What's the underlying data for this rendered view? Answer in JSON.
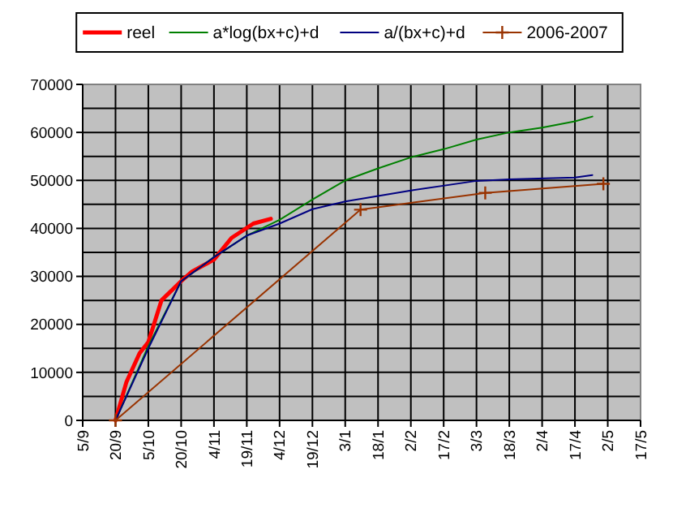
{
  "chart_data": {
    "type": "line",
    "legend": "top",
    "grid": true,
    "xlim": [
      "2007-09-05",
      "2008-05-17"
    ],
    "xticks": [
      {
        "value": "2007-09-05",
        "label": "5/9"
      },
      {
        "value": "2007-09-20",
        "label": "20/9"
      },
      {
        "value": "2007-10-05",
        "label": "5/10"
      },
      {
        "value": "2007-10-20",
        "label": "20/10"
      },
      {
        "value": "2007-11-04",
        "label": "4/11"
      },
      {
        "value": "2007-11-19",
        "label": "19/11"
      },
      {
        "value": "2007-12-04",
        "label": "4/12"
      },
      {
        "value": "2007-12-19",
        "label": "19/12"
      },
      {
        "value": "2008-01-03",
        "label": "3/1"
      },
      {
        "value": "2008-01-18",
        "label": "18/1"
      },
      {
        "value": "2008-02-02",
        "label": "2/2"
      },
      {
        "value": "2008-02-17",
        "label": "17/2"
      },
      {
        "value": "2008-03-03",
        "label": "3/3"
      },
      {
        "value": "2008-03-18",
        "label": "18/3"
      },
      {
        "value": "2008-04-02",
        "label": "2/4"
      },
      {
        "value": "2008-04-17",
        "label": "17/4"
      },
      {
        "value": "2008-05-02",
        "label": "2/5"
      },
      {
        "value": "2008-05-17",
        "label": "17/5"
      }
    ],
    "ylim": [
      0,
      70000
    ],
    "yticks": [
      0,
      {
        "value": 5000,
        "label": null
      },
      10000,
      {
        "value": 15000,
        "label": null
      },
      20000,
      {
        "value": 25000,
        "label": null
      },
      30000,
      {
        "value": 35000,
        "label": null
      },
      40000,
      {
        "value": 45000,
        "label": null
      },
      50000,
      {
        "value": 55000,
        "label": null
      },
      60000,
      {
        "value": 65000,
        "label": null
      },
      70000
    ],
    "series": [
      {
        "name": "reel",
        "color": "#ff0000",
        "x": [
          "2007-09-20",
          "2007-09-25",
          "2007-10-01",
          "2007-10-05",
          "2007-10-11",
          "2007-10-20",
          "2007-10-25",
          "2007-11-04",
          "2007-11-12",
          "2007-11-22",
          "2007-11-30"
        ],
        "values": [
          0,
          8000,
          14000,
          16300,
          25000,
          29000,
          31000,
          33500,
          38000,
          41000,
          42000
        ]
      },
      {
        "name": "a*log(bx+c)+d",
        "color": "#008000",
        "x": [
          "2007-09-20",
          "2007-10-05",
          "2007-10-20",
          "2007-11-04",
          "2007-11-19",
          "2007-12-04",
          "2007-12-19",
          "2008-01-03",
          "2008-01-18",
          "2008-02-02",
          "2008-02-17",
          "2008-03-03",
          "2008-03-18",
          "2008-04-02",
          "2008-04-17",
          "2008-04-25"
        ],
        "values": [
          0,
          15500,
          29000,
          34000,
          38500,
          41800,
          46000,
          50000,
          52500,
          54800,
          56500,
          58500,
          60000,
          61000,
          62300,
          63300
        ]
      },
      {
        "name": "a/(bx+c)+d",
        "color": "#000080",
        "x": [
          "2007-09-20",
          "2007-10-05",
          "2007-10-20",
          "2007-11-04",
          "2007-11-19",
          "2007-12-04",
          "2007-12-19",
          "2008-01-03",
          "2008-02-02",
          "2008-03-03",
          "2008-03-18",
          "2008-04-17",
          "2008-04-25"
        ],
        "values": [
          0,
          15000,
          29000,
          34000,
          38500,
          41000,
          44000,
          45600,
          47900,
          49900,
          50200,
          50600,
          51100
        ]
      },
      {
        "name": "2006-2007",
        "color": "#993300",
        "marker": "cross",
        "x": [
          "2007-09-20",
          "2008-01-10",
          "2008-03-07",
          "2008-04-30"
        ],
        "values": [
          0,
          43900,
          47400,
          49300
        ]
      }
    ]
  }
}
